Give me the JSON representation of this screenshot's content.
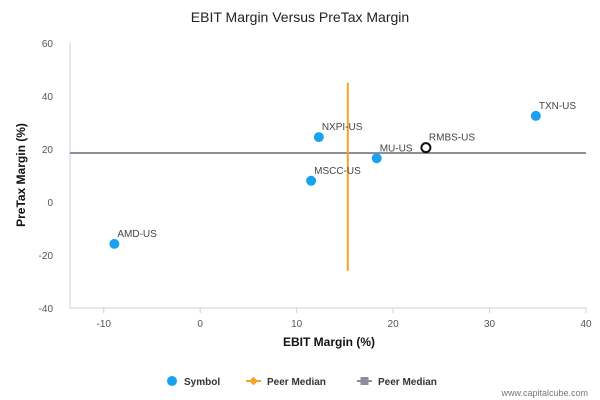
{
  "chart_data": {
    "type": "scatter",
    "title": "EBIT Margin Versus PreTax Margin",
    "xlabel": "EBIT Margin (%)",
    "ylabel": "PreTax Margin (%)",
    "xlim": [
      -13.5,
      40
    ],
    "ylim": [
      -40,
      60
    ],
    "xticks": [
      -10,
      0,
      10,
      20,
      30,
      40
    ],
    "yticks": [
      -40,
      -20,
      0,
      20,
      40,
      60
    ],
    "grid": false,
    "points": [
      {
        "label": "TXN-US",
        "x": 34.8,
        "y": 32.5,
        "highlight": false
      },
      {
        "label": "NXPI-US",
        "x": 12.3,
        "y": 24.5,
        "highlight": false
      },
      {
        "label": "RMBS-US",
        "x": 23.4,
        "y": 20.5,
        "highlight": true
      },
      {
        "label": "MU-US",
        "x": 18.3,
        "y": 16.5,
        "highlight": false
      },
      {
        "label": "MSCC-US",
        "x": 11.5,
        "y": 8.0,
        "highlight": false
      },
      {
        "label": "AMD-US",
        "x": -8.9,
        "y": -15.8,
        "highlight": false
      }
    ],
    "peer_median_x": 15.3,
    "peer_median_x_range": [
      -26,
      45
    ],
    "peer_median_y": 18.5,
    "legend": {
      "position": "bottom",
      "items": [
        {
          "label": "Symbol",
          "kind": "dot",
          "color": "#1aa1f0"
        },
        {
          "label": "Peer Median",
          "kind": "line-diamond",
          "color": "#f7a126"
        },
        {
          "label": "Peer Median",
          "kind": "line-square",
          "color": "#8a8f99"
        }
      ]
    },
    "colors": {
      "point": "#1aa1f0",
      "highlight_stroke": "#111111",
      "median_vertical": "#f7a126",
      "median_horizontal": "#8a8f99",
      "axis": "#c8d0dc"
    }
  },
  "watermark": "www.capitalcube.com"
}
